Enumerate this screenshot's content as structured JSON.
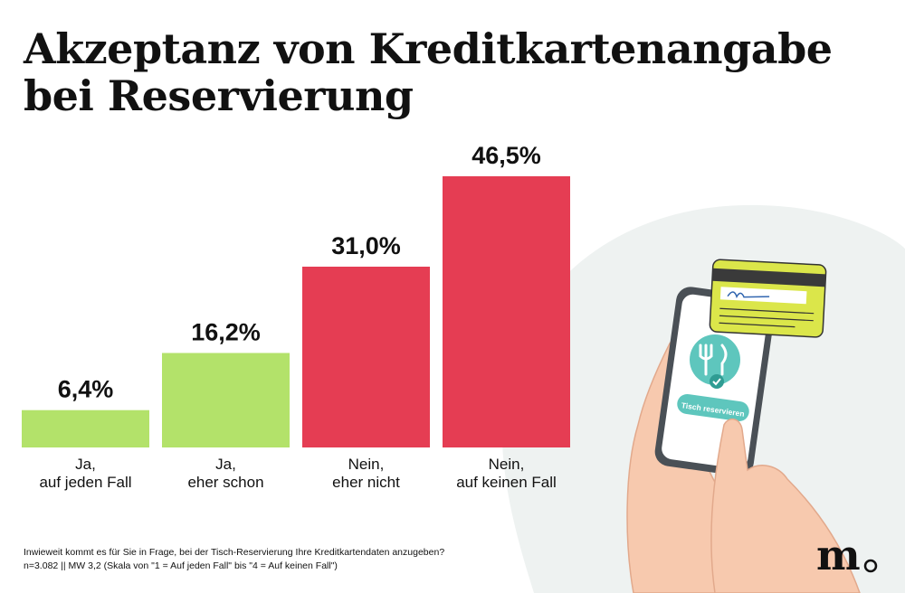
{
  "colors": {
    "positive": "#b3e26a",
    "negative": "#e53d53",
    "text": "#111111",
    "card": "#dbe64a",
    "skin": "#f7c9ae",
    "backdrop": "#eef2f1"
  },
  "chart_data": {
    "type": "bar",
    "title": [
      "Akzeptanz von Kreditkartenangabe",
      "bei Reservierung"
    ],
    "categories": [
      [
        "Ja,",
        "auf jeden Fall"
      ],
      [
        "Ja,",
        "eher schon"
      ],
      [
        "Nein,",
        "eher nicht"
      ],
      [
        "Nein,",
        "auf keinen Fall"
      ]
    ],
    "values": [
      6.4,
      16.2,
      31.0,
      46.5
    ],
    "value_labels": [
      "6,4%",
      "16,2%",
      "31,0%",
      "46,5%"
    ],
    "bar_colors": [
      "#b3e26a",
      "#b3e26a",
      "#e53d53",
      "#e53d53"
    ],
    "ylim": [
      0,
      50
    ],
    "grid": false,
    "legend": "none"
  },
  "footer": {
    "question": "Inwieweit kommt es für Sie in Frage, bei der Tisch-Reservierung Ihre Kreditkartendaten anzugeben?",
    "sample": "n=3.082 || MW 3,2 (Skala von \"1 = Auf jeden Fall\" bis \"4 = Auf keinen Fall\")"
  },
  "illustration": {
    "button_label": "Tisch reservieren",
    "icons": [
      "fork-knife-icon",
      "check-icon",
      "credit-card-icon",
      "smartphone-icon",
      "hand-icon"
    ]
  },
  "logo": {
    "text": "m"
  }
}
